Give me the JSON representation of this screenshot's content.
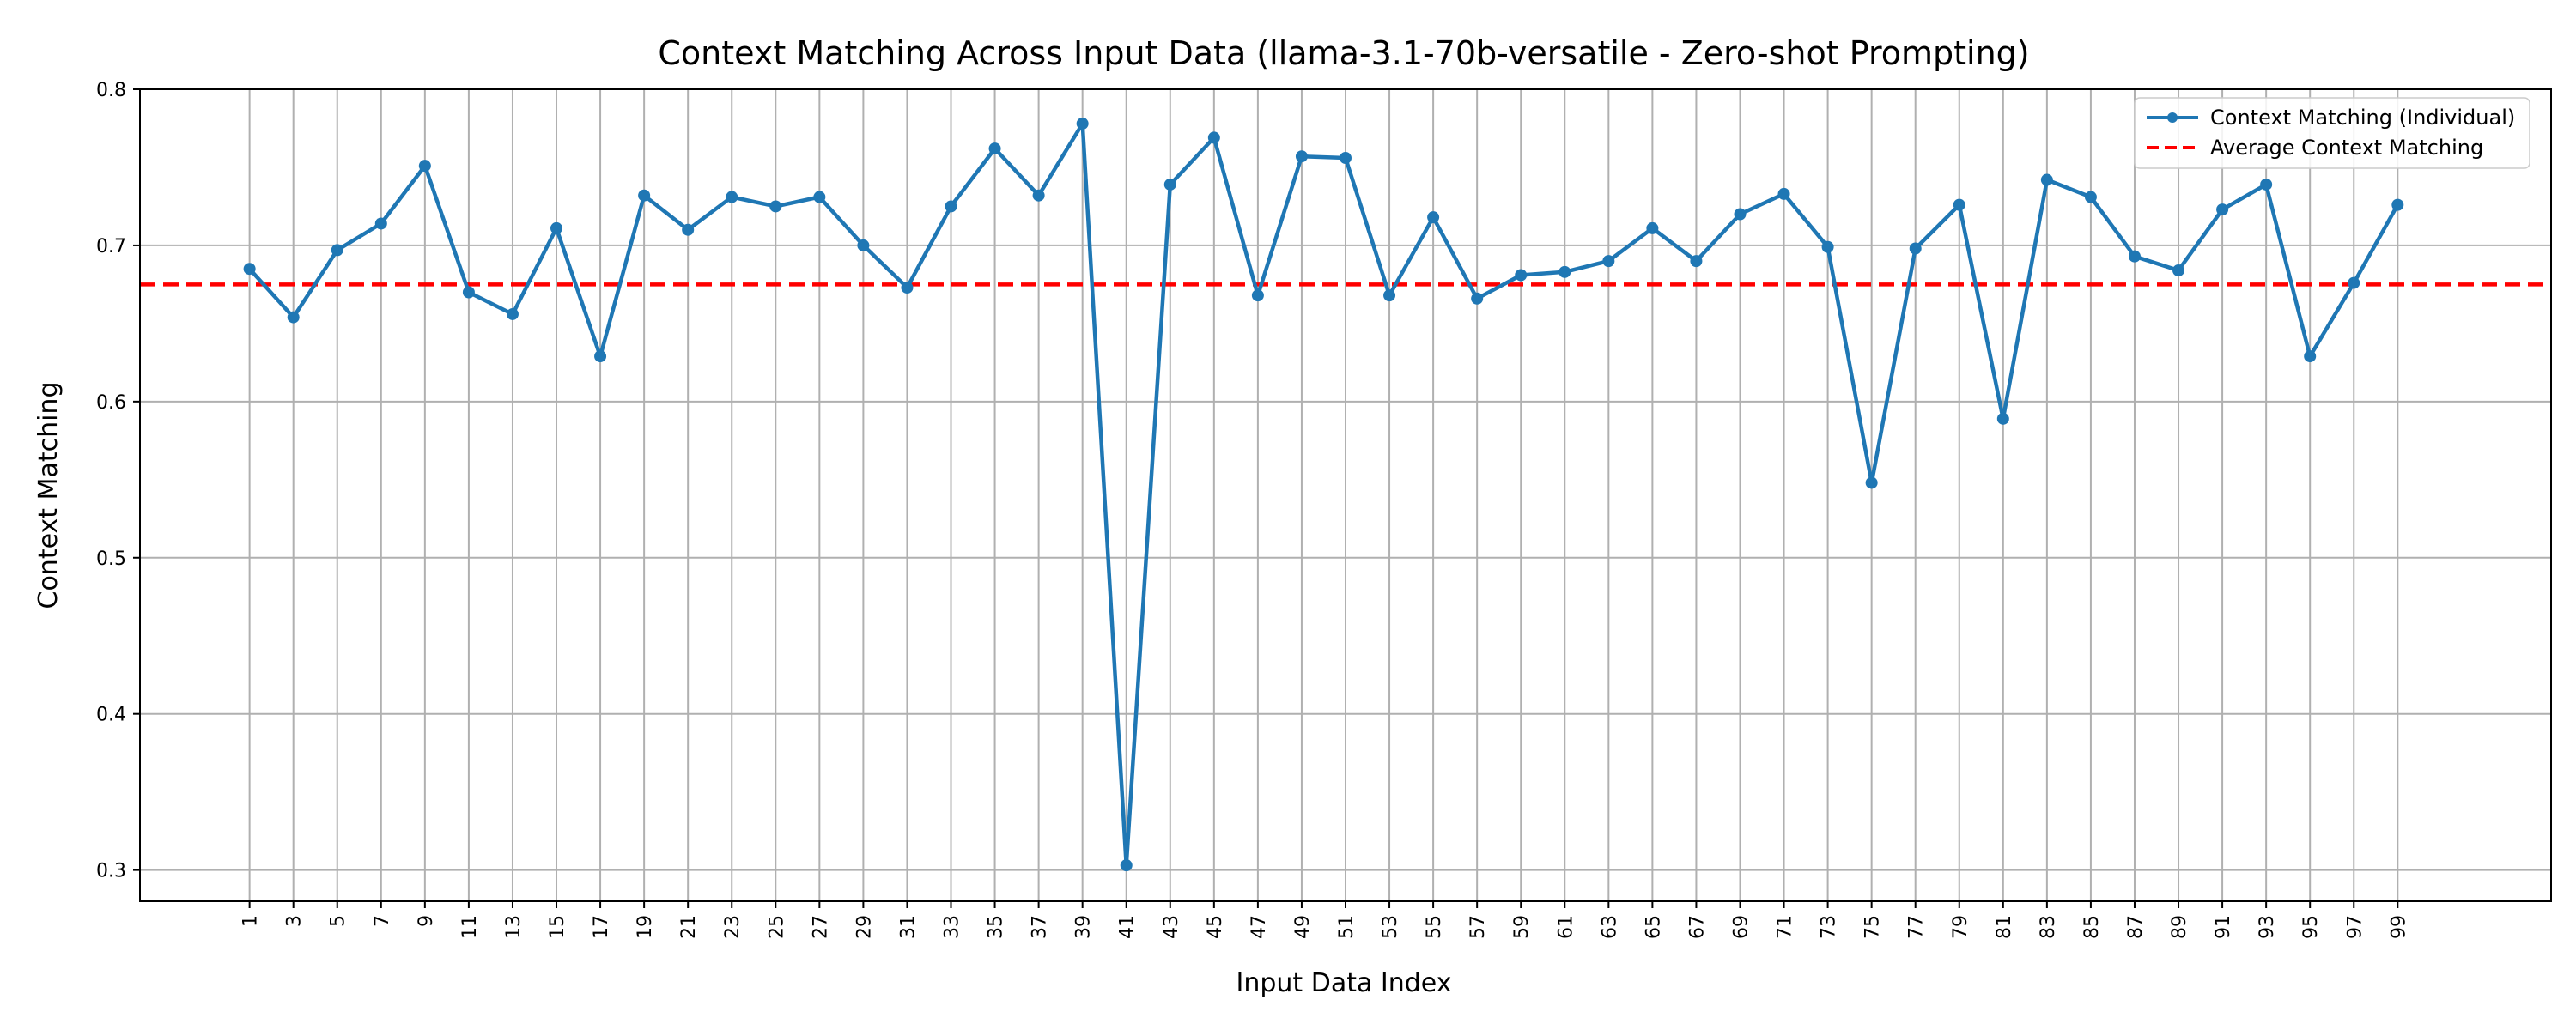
{
  "chart_data": {
    "type": "line",
    "title": "Context Matching Across Input Data (llama-3.1-70b-versatile - Zero-shot Prompting)",
    "xlabel": "Input Data Index",
    "ylabel": "Context Matching",
    "xlim": [
      -4,
      106
    ],
    "ylim": [
      0.28,
      0.8
    ],
    "grid": true,
    "legend_position": "top-right",
    "x": [
      1,
      3,
      5,
      7,
      9,
      11,
      13,
      15,
      17,
      19,
      21,
      23,
      25,
      27,
      29,
      31,
      33,
      35,
      37,
      39,
      41,
      43,
      45,
      47,
      49,
      51,
      53,
      55,
      57,
      59,
      61,
      63,
      65,
      67,
      69,
      71,
      73,
      75,
      77,
      79,
      81,
      83,
      85,
      87,
      89,
      91,
      93,
      95,
      97,
      99
    ],
    "xticks": [
      "1",
      "3",
      "5",
      "7",
      "9",
      "11",
      "13",
      "15",
      "17",
      "19",
      "21",
      "23",
      "25",
      "27",
      "29",
      "31",
      "33",
      "35",
      "37",
      "39",
      "41",
      "43",
      "45",
      "47",
      "49",
      "51",
      "53",
      "55",
      "57",
      "59",
      "61",
      "63",
      "65",
      "67",
      "69",
      "71",
      "73",
      "75",
      "77",
      "79",
      "81",
      "83",
      "85",
      "87",
      "89",
      "91",
      "93",
      "95",
      "97",
      "99"
    ],
    "yticks": [
      {
        "value": 0.3,
        "label": "0.3"
      },
      {
        "value": 0.4,
        "label": "0.4"
      },
      {
        "value": 0.5,
        "label": "0.5"
      },
      {
        "value": 0.6,
        "label": "0.6"
      },
      {
        "value": 0.7,
        "label": "0.7"
      },
      {
        "value": 0.8,
        "label": "0.8"
      }
    ],
    "series": [
      {
        "name": "Context Matching (Individual)",
        "color": "#1f77b4",
        "style": "solid-with-markers",
        "values": [
          0.685,
          0.654,
          0.697,
          0.714,
          0.751,
          0.67,
          0.656,
          0.711,
          0.629,
          0.732,
          0.71,
          0.731,
          0.725,
          0.731,
          0.7,
          0.673,
          0.725,
          0.762,
          0.732,
          0.778,
          0.303,
          0.739,
          0.769,
          0.668,
          0.757,
          0.756,
          0.668,
          0.718,
          0.666,
          0.681,
          0.683,
          0.69,
          0.711,
          0.69,
          0.72,
          0.733,
          0.699,
          0.548,
          0.698,
          0.726,
          0.589,
          0.742,
          0.731,
          0.693,
          0.684,
          0.723,
          0.739,
          0.629,
          0.676,
          0.726
        ]
      },
      {
        "name": "Average Context Matching",
        "color": "#ff0000",
        "style": "dashed",
        "value": 0.675
      }
    ]
  }
}
